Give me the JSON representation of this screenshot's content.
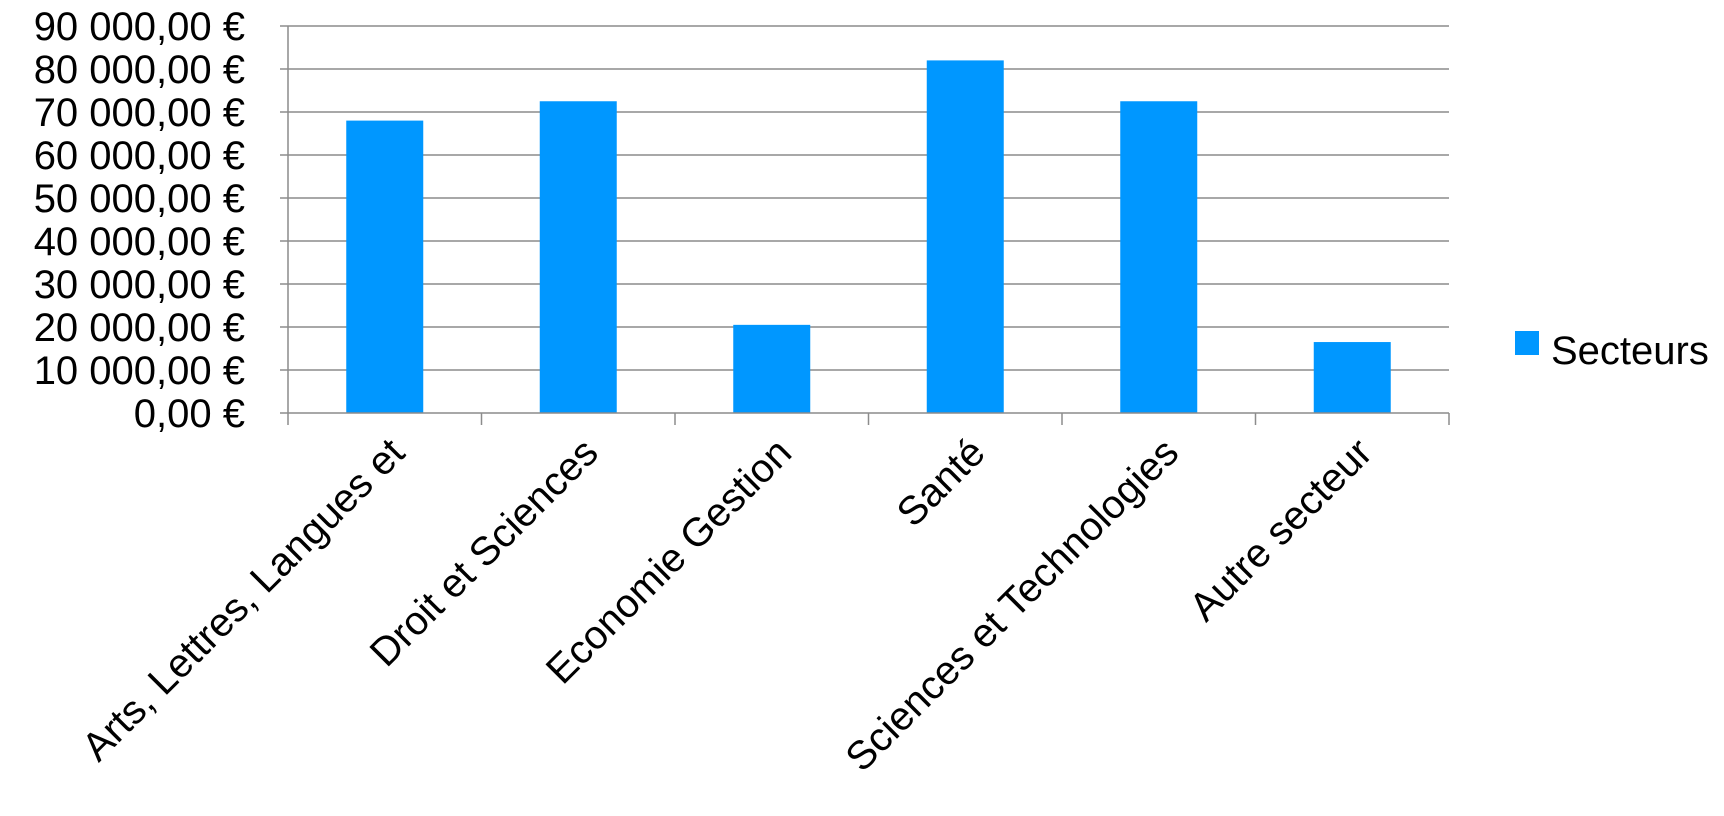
{
  "chart_data": {
    "type": "bar",
    "categories": [
      "Arts, Lettres, Langues et",
      "Droit et Sciences",
      "Economie Gestion",
      "Santé",
      "Sciences et Technologies",
      "Autre secteur"
    ],
    "series": [
      {
        "name": "Secteurs",
        "color": "#0097FF",
        "values": [
          68000,
          72500,
          20500,
          82000,
          72500,
          16500
        ]
      }
    ],
    "ylim": [
      0,
      90000
    ],
    "ytick_values": [
      0,
      10000,
      20000,
      30000,
      40000,
      50000,
      60000,
      70000,
      80000,
      90000
    ],
    "ytick_labels": [
      "0,00 €",
      "10 000,00 €",
      "20 000,00 €",
      "30 000,00 €",
      "40 000,00 €",
      "50 000,00 €",
      "60 000,00 €",
      "70 000,00 €",
      "80 000,00 €",
      "90 000,00 €"
    ],
    "grid": true,
    "legend_position": "right",
    "gridline_color": "#8C8C8C",
    "axis_color": "#8C8C8C"
  }
}
